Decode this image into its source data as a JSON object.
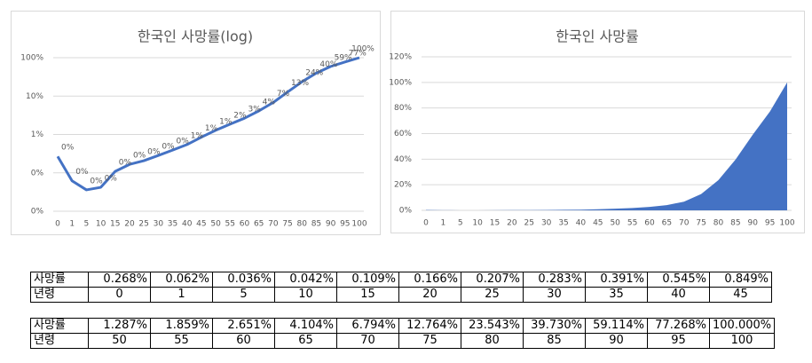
{
  "chart_data": [
    {
      "type": "line",
      "title": "한국인 사망률(log)",
      "log_scale": true,
      "grid": true,
      "categories": [
        "0",
        "1",
        "5",
        "10",
        "15",
        "20",
        "25",
        "30",
        "35",
        "40",
        "45",
        "50",
        "55",
        "60",
        "65",
        "70",
        "75",
        "80",
        "85",
        "90",
        "95",
        "100"
      ],
      "series": [
        {
          "color": "#4472c4",
          "values": [
            0.268,
            0.062,
            0.036,
            0.042,
            0.109,
            0.166,
            0.207,
            0.283,
            0.391,
            0.545,
            0.849,
            1.287,
            1.859,
            2.651,
            4.104,
            6.794,
            12.764,
            23.543,
            39.73,
            59.114,
            77.268,
            100.0
          ],
          "value_labels": [
            "0%",
            "0%",
            "0%",
            "0%",
            "0%",
            "0%",
            "0%",
            "0%",
            "0%",
            "1%",
            "1%",
            "1%",
            "2%",
            "3%",
            "4%",
            "7%",
            "13%",
            "24%",
            "40%",
            "59%",
            "77%",
            "100%"
          ]
        }
      ],
      "ylim": [
        0.01,
        100
      ],
      "yticks": [
        {
          "value": 0.01,
          "label": "0%"
        },
        {
          "value": 0.1,
          "label": "0%"
        },
        {
          "value": 1,
          "label": "1%"
        },
        {
          "value": 10,
          "label": "10%"
        },
        {
          "value": 100,
          "label": "100%"
        }
      ]
    },
    {
      "type": "area",
      "title": "한국인 사망률",
      "grid": true,
      "categories": [
        "0",
        "1",
        "5",
        "10",
        "15",
        "20",
        "25",
        "30",
        "35",
        "40",
        "45",
        "50",
        "55",
        "60",
        "65",
        "70",
        "75",
        "80",
        "85",
        "90",
        "95",
        "100"
      ],
      "series": [
        {
          "color": "#4472c4",
          "values": [
            0.268,
            0.062,
            0.036,
            0.042,
            0.109,
            0.166,
            0.207,
            0.283,
            0.391,
            0.545,
            0.849,
            1.287,
            1.859,
            2.651,
            4.104,
            6.794,
            12.764,
            23.543,
            39.73,
            59.114,
            77.268,
            100.0
          ]
        }
      ],
      "ylim": [
        0,
        120
      ],
      "yticks": [
        {
          "value": 0,
          "label": "0%"
        },
        {
          "value": 20,
          "label": "20%"
        },
        {
          "value": 40,
          "label": "40%"
        },
        {
          "value": 60,
          "label": "60%"
        },
        {
          "value": 80,
          "label": "80%"
        },
        {
          "value": 100,
          "label": "100%"
        },
        {
          "value": 120,
          "label": "120%"
        }
      ]
    }
  ],
  "tables": [
    {
      "rows": [
        [
          "사망률",
          "0.268%",
          "0.062%",
          "0.036%",
          "0.042%",
          "0.109%",
          "0.166%",
          "0.207%",
          "0.283%",
          "0.391%",
          "0.545%",
          "0.849%"
        ],
        [
          "년령",
          "0",
          "1",
          "5",
          "10",
          "15",
          "20",
          "25",
          "30",
          "35",
          "40",
          "45"
        ]
      ]
    },
    {
      "rows": [
        [
          "사망률",
          "1.287%",
          "1.859%",
          "2.651%",
          "4.104%",
          "6.794%",
          "12.764%",
          "23.543%",
          "39.730%",
          "59.114%",
          "77.268%",
          "100.000%"
        ],
        [
          "년령",
          "50",
          "55",
          "60",
          "65",
          "70",
          "75",
          "80",
          "85",
          "90",
          "95",
          "100"
        ]
      ]
    }
  ]
}
